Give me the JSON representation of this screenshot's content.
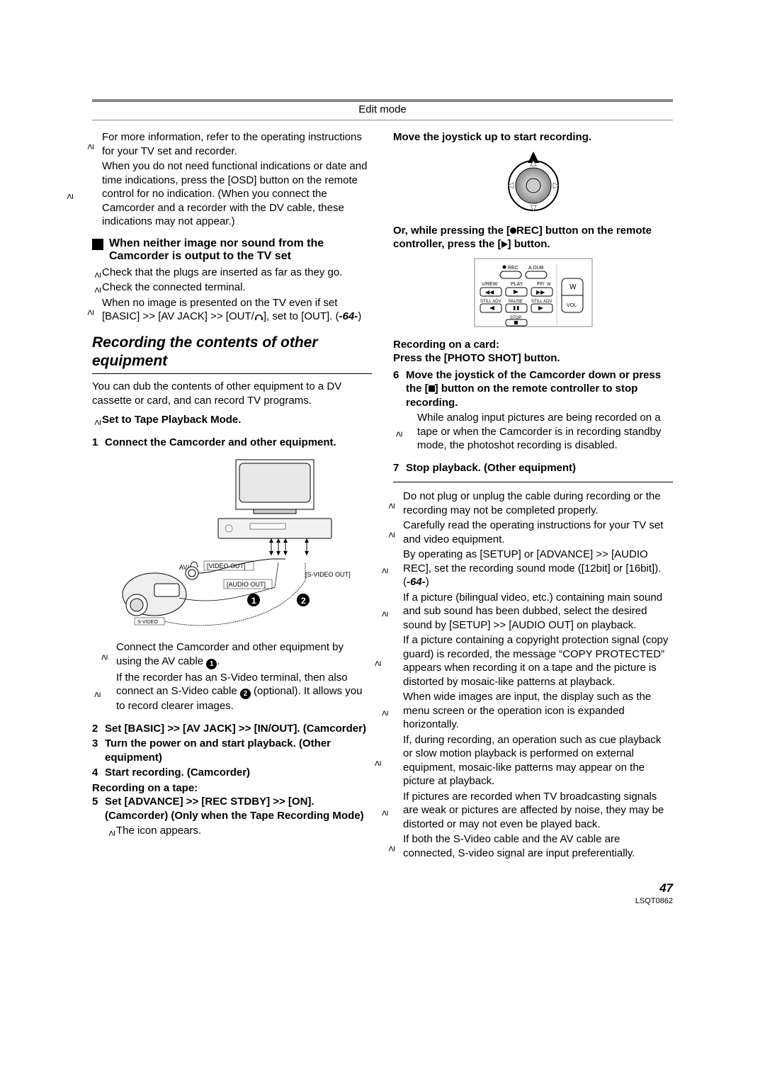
{
  "header": {
    "title": "Edit mode"
  },
  "leftCol": {
    "topBullets": [
      "For more information, refer to the operating instructions for your TV set and recorder.",
      "When you do not need functional indications or date and time indications, press the [OSD] button on the remote control for no indication. (When you connect the Camcorder and a recorder with the DV cable, these indications may not appear.)"
    ],
    "noImageHeading": "When neither image nor sound from the Camcorder is output to the TV set",
    "noImageBullets": [
      "Check that the plugs are inserted as far as they go.",
      "Check the connected terminal.",
      "When no image is presented on the TV even if set [BASIC] >> [AV JACK] >> [OUT/__HEADPHONE__], set to [OUT]. (__REF64__)"
    ],
    "sectionTitle": "Recording the contents of other equipment",
    "intro": "You can dub the contents of other equipment to a DV cassette or card, and can record TV programs.",
    "preBullet": "Set to Tape Playback Mode.",
    "step1": {
      "num": "1",
      "text": "Connect the Camcorder and other equipment."
    },
    "diagramLabels": {
      "av": "AV/",
      "videoOut": "[VIDEO OUT]",
      "sVideoOut": "[S-VIDEO OUT]",
      "audioOut": "[AUDIO OUT]",
      "svideo": "S-VIDEO"
    },
    "subBullets": [
      "Connect the Camcorder and other equipment by using the AV cable __C1__.",
      "If the recorder has an S-Video terminal, then also connect an S-Video cable __C2__ (optional). It allows you to record clearer images."
    ],
    "step2": {
      "num": "2",
      "text": "Set [BASIC] >> [AV JACK] >> [IN/OUT]. (Camcorder)"
    },
    "step3": {
      "num": "3",
      "text": "Turn the power on and start playback. (Other equipment)"
    },
    "step4": {
      "num": "4",
      "text": "Start recording. (Camcorder)"
    },
    "recOnTape": "Recording on a tape:",
    "step5": {
      "num": "5",
      "text": "Set [ADVANCE] >> [REC STDBY] >> [ON]. (Camcorder) (Only when the Tape Recording Mode)"
    },
    "iconAppears": "The icon appears."
  },
  "rightCol": {
    "moveJoystick": "Move the joystick up to start recording.",
    "orWhile": "Or, while pressing the [__RECDOT__REC] button on the remote controller, press the [__PLAY__] button.",
    "remoteLabels": {
      "rec": "REC",
      "adub": "A.DUB",
      "rew": "/REW",
      "play": "PLAY",
      "ff": "FF/",
      "stillL": "STILL ADV",
      "pause": "PAUSE",
      "stillR": "STILL ADV",
      "stop": "STOP",
      "w": "W",
      "vol": "VOL"
    },
    "recOnCard": "Recording on a card:",
    "pressPhoto": "Press the [PHOTO SHOT] button.",
    "step6": {
      "num": "6",
      "text": "Move the joystick of the Camcorder down or press the [__STOP__] button on the remote controller to stop recording."
    },
    "step6Bullet": "While analog input pictures are being recorded on a tape or when the Camcorder is in recording standby mode, the photoshot recording is disabled.",
    "step7": {
      "num": "7",
      "text": "Stop playback. (Other equipment)"
    },
    "notes": [
      "Do not plug or unplug the cable during recording or the recording may not be completed properly.",
      "Carefully read the operating instructions for your TV set and video equipment.",
      "By operating as [SETUP] or [ADVANCE] >> [AUDIO REC], set the recording sound mode ([12bit] or [16bit]). (__REF64__)",
      "If a picture (bilingual video, etc.) containing main sound and sub sound has been dubbed, select the desired sound by [SETUP] >> [AUDIO OUT] on playback.",
      "If a picture containing a copyright protection signal (copy guard) is recorded, the message “COPY PROTECTED” appears when recording it on a tape and the picture is distorted by mosaic-like patterns at playback.",
      "When wide images are input, the display such as the menu screen or the operation icon is expanded horizontally.",
      "If, during recording, an operation such as cue playback or slow motion playback is performed on external equipment, mosaic-like patterns may appear on the picture at playback.",
      "If pictures are recorded when TV broadcasting signals are weak or pictures are affected by noise, they may be distorted or may not even be played back.",
      "If both the S-Video cable and the AV cable are connected, S-video signal are input preferentially."
    ]
  },
  "footer": {
    "page": "47",
    "code": "LSQT0862"
  },
  "ref64": "-64-"
}
